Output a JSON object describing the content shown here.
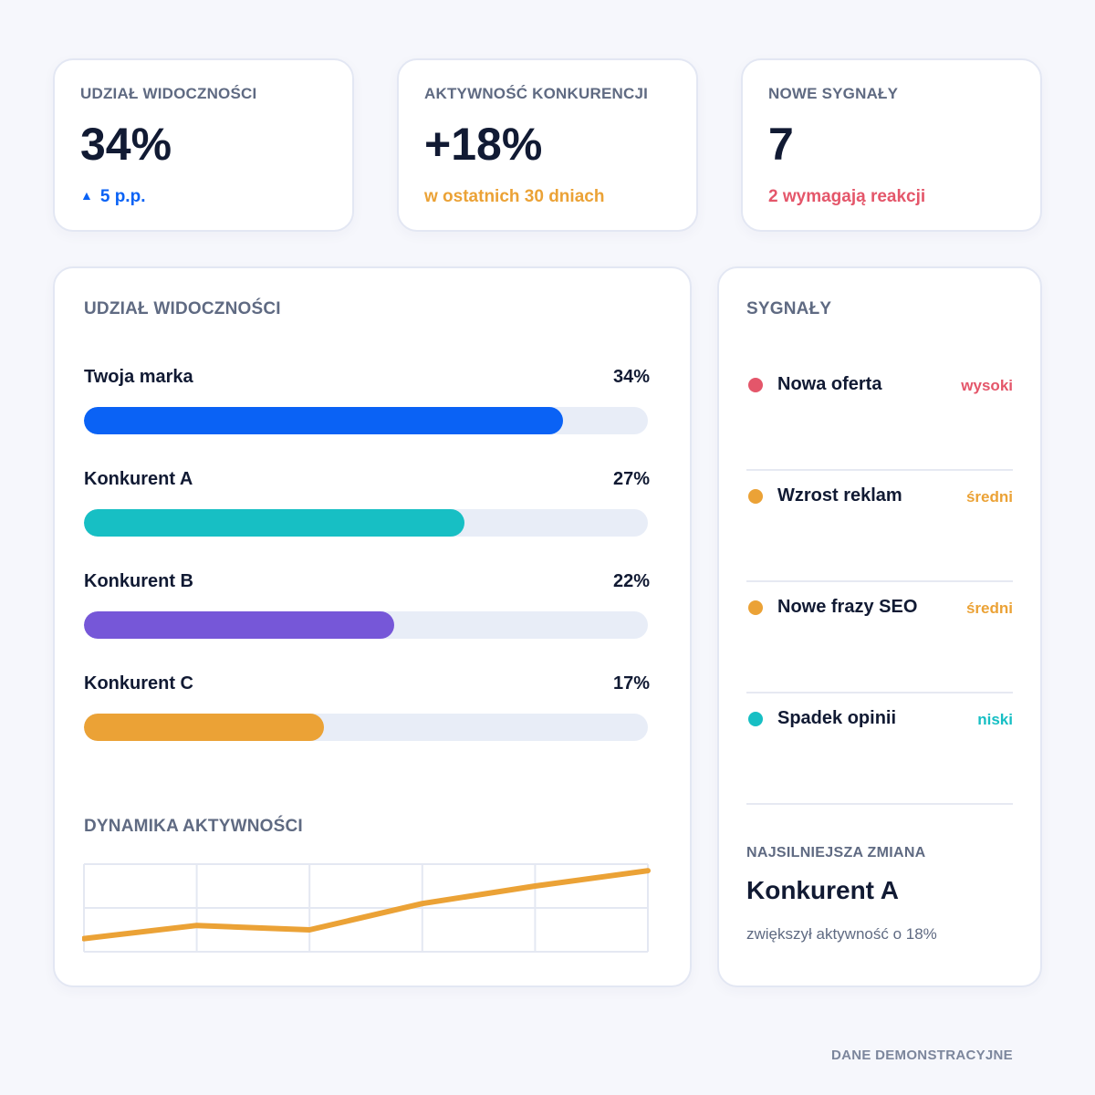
{
  "kpis": [
    {
      "label": "UDZIAŁ WIDOCZNOŚCI",
      "value": "34%",
      "note": "5 p.p.",
      "note_icon": "triangle-up-icon",
      "note_color": "#0a62f5"
    },
    {
      "label": "AKTYWNOŚĆ KONKURENCJI",
      "value": "+18%",
      "note": "w ostatnich 30 dniach",
      "note_color": "#eba236"
    },
    {
      "label": "NOWE SYGNAŁY",
      "value": "7",
      "note": "2 wymagają reakcji",
      "note_color": "#e4566a"
    }
  ],
  "share": {
    "title": "UDZIAŁ WIDOCZNOŚCI",
    "rows": [
      {
        "name": "Twoja marka",
        "value_label": "34%",
        "fill": 0.85,
        "color": "#0a62f5"
      },
      {
        "name": "Konkurent A",
        "value_label": "27%",
        "fill": 0.675,
        "color": "#17bfc4"
      },
      {
        "name": "Konkurent B",
        "value_label": "22%",
        "fill": 0.55,
        "color": "#7657d8"
      },
      {
        "name": "Konkurent C",
        "value_label": "17%",
        "fill": 0.425,
        "color": "#eba236"
      }
    ]
  },
  "chart_data": {
    "type": "line",
    "title": "DYNAMIKA AKTYWNOŚCI",
    "x": [
      0,
      1,
      2,
      3,
      4,
      5
    ],
    "series": [
      {
        "values": [
          3,
          6,
          5,
          11,
          15,
          18.5
        ],
        "color": "#eba236"
      }
    ],
    "ylim": [
      0,
      20
    ],
    "grid": true,
    "grid_columns": 5,
    "grid_rows": 2
  },
  "signals": {
    "title": "SYGNAŁY",
    "items": [
      {
        "name": "Nowa oferta",
        "level": "wysoki",
        "color": "#e4566a"
      },
      {
        "name": "Wzrost reklam",
        "level": "średni",
        "color": "#eba236"
      },
      {
        "name": "Nowe frazy SEO",
        "level": "średni",
        "color": "#eba236"
      },
      {
        "name": "Spadek opinii",
        "level": "niski",
        "color": "#17bfc4"
      }
    ],
    "change_label": "NAJSILNIEJSZA ZMIANA",
    "change_title": "Konkurent A",
    "change_desc": "zwiększył aktywność o 18%"
  },
  "footer": "DANE DEMONSTRACYJNE"
}
